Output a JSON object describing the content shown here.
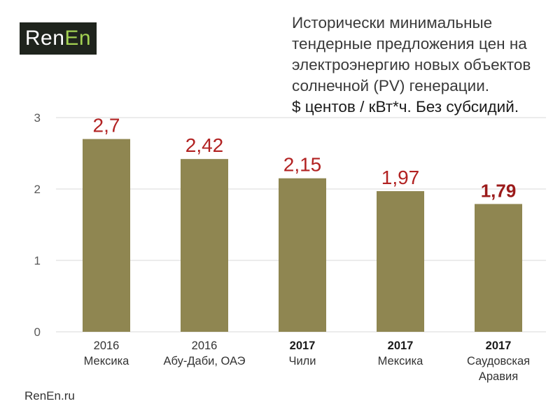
{
  "logo": {
    "part1": "Ren",
    "part2": "En"
  },
  "title_lines": [
    "Исторически минимальные",
    "тендерные предложения цен на",
    "электроэнергию новых объектов",
    "солнечной (PV) генерации."
  ],
  "unit_line": "$ центов / кВт*ч. Без субсидий.",
  "footer": "RenEn.ru",
  "colors": {
    "bar": "#8f8651",
    "value_label": "#b22222",
    "value_label_last": "#9b1a1a",
    "grid": "#d9d9d9",
    "logo_bg": "#1f241d",
    "logo_accent": "#a3d152"
  },
  "chart_data": {
    "type": "bar",
    "title": "Исторически минимальные тендерные предложения цен на электроэнергию новых объектов солнечной (PV) генерации.",
    "ylabel": "$ центов / кВт*ч. Без субсидий.",
    "ylim": [
      0,
      3
    ],
    "yticks": [
      "0",
      "1",
      "2",
      "3"
    ],
    "grid": true,
    "categories": [
      {
        "year": "2016",
        "year_bold": false,
        "place": [
          "Мексика"
        ]
      },
      {
        "year": "2016",
        "year_bold": false,
        "place": [
          "Абу-Даби, ОАЭ"
        ]
      },
      {
        "year": "2017",
        "year_bold": true,
        "place": [
          "Чили"
        ]
      },
      {
        "year": "2017",
        "year_bold": true,
        "place": [
          "Мексика"
        ]
      },
      {
        "year": "2017",
        "year_bold": true,
        "place": [
          "Саудовская",
          "Аравия"
        ]
      }
    ],
    "values": [
      2.7,
      2.42,
      2.15,
      1.97,
      1.79
    ],
    "value_labels": [
      "2,7",
      "2,42",
      "2,15",
      "1,97",
      "1,79"
    ]
  }
}
